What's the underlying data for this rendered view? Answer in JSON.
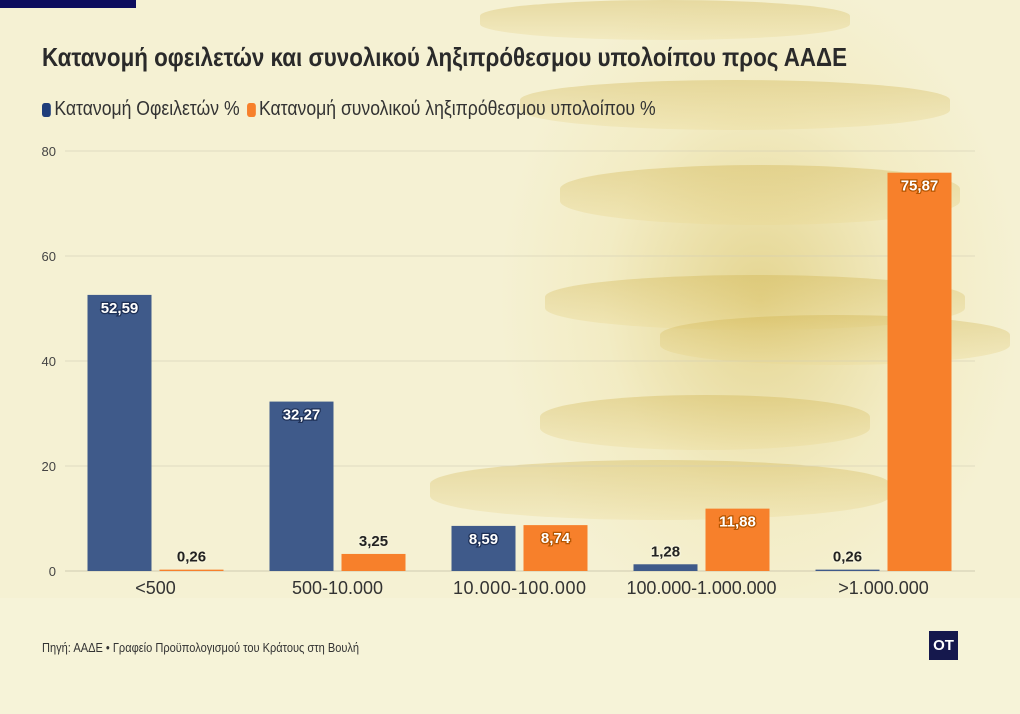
{
  "title": "Κατανομή οφειλετών και συνολικού ληξιπρόθεσμου υπολοίπου προς ΑΑΔΕ",
  "source": "Πηγή: ΑΑΔΕ • Γραφείο Προϋπολογισμού του Κράτους στη Βουλή",
  "logo": "OT",
  "colors": {
    "blue": "#3f5a8a",
    "orange": "#f7802b",
    "logo_bg": "#15184d"
  },
  "chart_data": {
    "type": "bar",
    "title": "Κατανομή οφειλετών και συνολικού ληξιπρόθεσμου υπολοίπου προς ΑΑΔΕ",
    "categories": [
      "<500",
      "500-10.000",
      "10.000-100.000",
      "100.000-1.000.000",
      ">1.000.000"
    ],
    "series": [
      {
        "name": "Κατανομή Οφειλετών %",
        "color": "#3f5a8a",
        "values": [
          52.59,
          32.27,
          8.59,
          1.28,
          0.26
        ],
        "labels": [
          "52,59",
          "32,27",
          "8,59",
          "1,28",
          "0,26"
        ]
      },
      {
        "name": "Κατανομή συνολικού ληξιπρόθεσμου υπολοίπου %",
        "color": "#f7802b",
        "values": [
          0.26,
          3.25,
          8.74,
          11.88,
          75.87
        ],
        "labels": [
          "0,26",
          "3,25",
          "8,74",
          "11,88",
          "75,87"
        ]
      }
    ],
    "ylim": [
      0,
      80
    ],
    "yticks": [
      "0",
      "20",
      "40",
      "60",
      "80"
    ],
    "grid": true,
    "legend": "top-left"
  }
}
